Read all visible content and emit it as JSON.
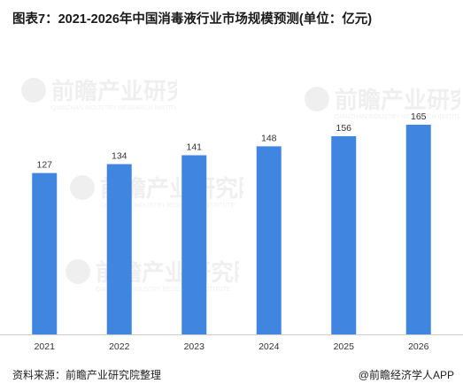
{
  "title": "图表7：2021-2026年中国消毒液行业市场规模预测(单位：亿元)",
  "source_note": "资料来源：前瞻产业研究院整理",
  "credit": "@前瞻经济学人APP",
  "watermark_text": "前瞻产业研究院",
  "watermark_sub": "QIANZHAN INDUSTRY RESEARCH INSTITUTE",
  "colors": {
    "bar": "#4086E0",
    "text": "#333333",
    "axis": "#cccccc"
  },
  "chart_data": {
    "type": "bar",
    "categories": [
      "2021",
      "2022",
      "2023",
      "2024",
      "2025",
      "2026"
    ],
    "values": [
      127,
      134,
      141,
      148,
      156,
      165
    ],
    "title": "2021-2026年中国消毒液行业市场规模预测",
    "ylabel": "",
    "xlabel": "",
    "unit": "亿元",
    "ylim": [
      0,
      180
    ],
    "grid": false,
    "legend": "none"
  }
}
